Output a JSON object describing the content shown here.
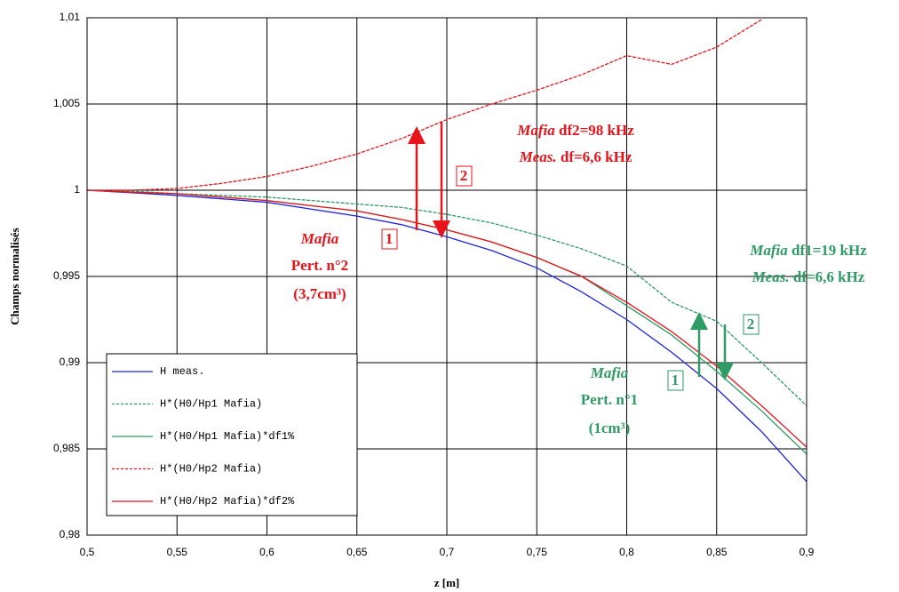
{
  "chart_data": {
    "type": "line",
    "xlabel": "z [m]",
    "ylabel": "Champs normalisés",
    "x": [
      0.5,
      0.525,
      0.55,
      0.575,
      0.6,
      0.625,
      0.65,
      0.675,
      0.7,
      0.725,
      0.75,
      0.775,
      0.8,
      0.825,
      0.85,
      0.875,
      0.9
    ],
    "series": [
      {
        "name": "H meas.",
        "color": "#1f24d8",
        "dash": false,
        "values": [
          1,
          0.99985,
          0.9997,
          0.9995,
          0.9993,
          0.9989,
          0.9985,
          0.998,
          0.9973,
          0.9965,
          0.9955,
          0.9941,
          0.9925,
          0.9906,
          0.9885,
          0.986,
          0.9831
        ]
      },
      {
        "name": "H*(H0/Hp1 Mafia)",
        "color": "#2e9a64",
        "dash": true,
        "values": [
          1,
          0.99995,
          0.9998,
          0.9997,
          0.9996,
          0.9994,
          0.9992,
          0.999,
          0.9986,
          0.9981,
          0.9974,
          0.9966,
          0.9956,
          0.9935,
          0.9924,
          0.99,
          0.9875
        ]
      },
      {
        "name": "H*(H0/Hp1 Mafia)*df1%",
        "color": "#2e9a64",
        "dash": false,
        "values": [
          1,
          0.99988,
          0.9998,
          0.9996,
          0.9994,
          0.9991,
          0.9988,
          0.9983,
          0.9977,
          0.997,
          0.9961,
          0.995,
          0.9933,
          0.9916,
          0.9895,
          0.9872,
          0.9847
        ]
      },
      {
        "name": "H*(H0/Hp2 Mafia)",
        "color": "#e8141b",
        "dash": true,
        "values": [
          1,
          1,
          1.0001,
          1.0004,
          1.0008,
          1.0014,
          1.0021,
          1.003,
          1.0041,
          1.005,
          1.0058,
          1.0067,
          1.0078,
          1.0073,
          1.0083,
          1.0099,
          null
        ]
      },
      {
        "name": "H*(H0/Hp2 Mafia)*df2%",
        "color": "#e8141b",
        "dash": false,
        "values": [
          1,
          0.99988,
          0.9998,
          0.9996,
          0.9994,
          0.9991,
          0.9988,
          0.9983,
          0.9977,
          0.997,
          0.9961,
          0.995,
          0.9935,
          0.9918,
          0.9898,
          0.9875,
          0.9851
        ]
      }
    ],
    "xlim": [
      0.5,
      0.9
    ],
    "xticks": [
      {
        "value": 0.5,
        "label": "0,5"
      },
      {
        "value": 0.55,
        "label": "0,55"
      },
      {
        "value": 0.6,
        "label": "0,6"
      },
      {
        "value": 0.65,
        "label": "0,65"
      },
      {
        "value": 0.7,
        "label": "0,7"
      },
      {
        "value": 0.75,
        "label": "0,75"
      },
      {
        "value": 0.8,
        "label": "0,8"
      },
      {
        "value": 0.85,
        "label": "0,85"
      },
      {
        "value": 0.9,
        "label": "0,9"
      }
    ],
    "ylim": [
      0.98,
      1.01
    ],
    "yticks": [
      {
        "value": 0.98,
        "label": "0,98"
      },
      {
        "value": 0.985,
        "label": "0,985"
      },
      {
        "value": 0.99,
        "label": "0,99"
      },
      {
        "value": 0.995,
        "label": "0,995"
      },
      1,
      {
        "value": 1.005,
        "label": "1,005"
      },
      {
        "value": 1.01,
        "label": "1,01"
      }
    ],
    "grid": true,
    "legend": "lower left",
    "annotations": {
      "red_df": [
        "Mafia",
        "df2=98 kHz"
      ],
      "red_meas": [
        "Meas.",
        "df=6,6 kHz"
      ],
      "red_pert": [
        "Mafia",
        "Pert. n°2",
        "(3,7cm³)"
      ],
      "green_df": [
        "Mafia",
        "df1=19 kHz"
      ],
      "green_meas": [
        "Meas.",
        "df=6,6 kHz"
      ],
      "green_pert": [
        "Mafia",
        "Pert. n°1",
        "(1cm³)"
      ],
      "markers": [
        "1",
        "2"
      ]
    }
  }
}
